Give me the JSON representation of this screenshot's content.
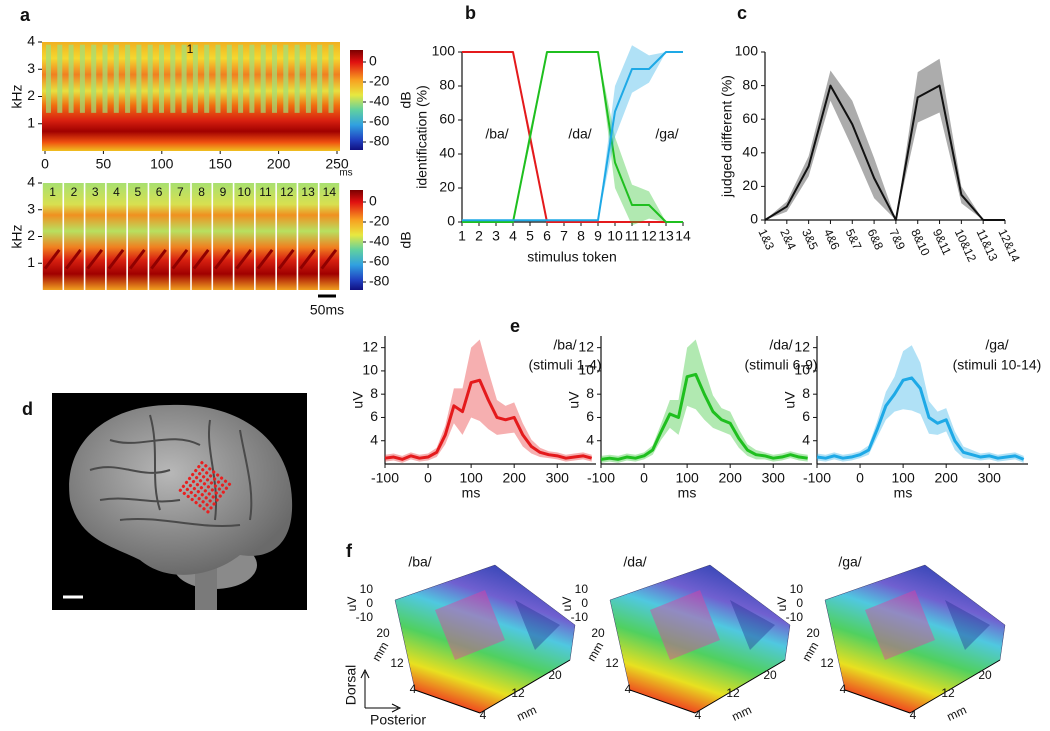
{
  "chart_data": [
    {
      "type": "spectrogram",
      "panel": "a",
      "ylabel": "kHz",
      "xlabel": "ms",
      "xlim": [
        0,
        250
      ],
      "xticks": [
        0,
        50,
        100,
        150,
        200,
        250
      ],
      "ylim": [
        0,
        4
      ],
      "yticks": [
        1,
        2,
        3,
        4
      ],
      "annotation": "1",
      "colorbar": {
        "label": "dB",
        "clim": [
          -88,
          12
        ],
        "ticks": [
          0,
          -20,
          -40,
          -60,
          -80
        ]
      }
    },
    {
      "type": "spectrogram",
      "ylabel": "kHz",
      "ylim": [
        0,
        4
      ],
      "yticks": [
        1,
        2,
        3,
        4
      ],
      "tokens": [
        1,
        2,
        3,
        4,
        5,
        6,
        7,
        8,
        9,
        10,
        11,
        12,
        13,
        14
      ],
      "scale_bar": "50ms",
      "colorbar": {
        "label": "dB",
        "clim": [
          -88,
          12
        ],
        "ticks": [
          0,
          -20,
          -40,
          -60,
          -80
        ]
      }
    },
    {
      "type": "line",
      "panel": "b",
      "ylabel": "identification (%)",
      "xlabel": "stimulus token",
      "x": [
        1,
        2,
        3,
        4,
        5,
        6,
        7,
        8,
        9,
        10,
        11,
        12,
        13,
        14
      ],
      "xlim": [
        1,
        14
      ],
      "xticks": [
        1,
        2,
        3,
        4,
        5,
        6,
        7,
        8,
        9,
        10,
        11,
        12,
        13,
        14
      ],
      "ylim": [
        0,
        100
      ],
      "yticks": [
        0,
        20,
        40,
        60,
        80,
        100
      ],
      "series": [
        {
          "name": "/ba/",
          "color": "#e41a1c",
          "values": [
            100,
            100,
            100,
            100,
            50,
            0,
            0,
            0,
            0,
            0,
            0,
            0,
            0,
            0
          ],
          "errors": [
            0,
            0,
            0,
            0,
            4,
            0,
            0,
            0,
            0,
            0,
            0,
            0,
            0,
            0
          ]
        },
        {
          "name": "/da/",
          "color": "#1fbf1f",
          "values": [
            0,
            0,
            0,
            0,
            50,
            100,
            100,
            100,
            100,
            35,
            10,
            10,
            0,
            0
          ],
          "errors": [
            0,
            0,
            0,
            0,
            4,
            0,
            0,
            0,
            0,
            15,
            12,
            8,
            0,
            0
          ]
        },
        {
          "name": "/ga/",
          "color": "#1ea9e6",
          "values": [
            1,
            1,
            1,
            1,
            1,
            1,
            1,
            1,
            1,
            65,
            90,
            90,
            100,
            100
          ],
          "errors": [
            0,
            0,
            0,
            0,
            0,
            0,
            0,
            0,
            0,
            15,
            14,
            8,
            0,
            0
          ]
        }
      ]
    },
    {
      "type": "line",
      "panel": "c",
      "ylabel": "judged different (%)",
      "categories": [
        "1&3",
        "2&4",
        "3&5",
        "4&6",
        "5&7",
        "6&8",
        "7&9",
        "8&10",
        "9&11",
        "10&12",
        "11&13",
        "12&14"
      ],
      "ylim": [
        0,
        100
      ],
      "yticks": [
        0,
        20,
        40,
        60,
        80,
        100
      ],
      "color": "#111111",
      "values": [
        0,
        8,
        32,
        80,
        57,
        25,
        0,
        73,
        80,
        15,
        0,
        0
      ],
      "errors": [
        0,
        3,
        6,
        9,
        14,
        12,
        0,
        15,
        16,
        5,
        0,
        0
      ]
    },
    {
      "type": "image",
      "panel": "d"
    },
    {
      "type": "line",
      "panel": "e",
      "title": "/ba/",
      "subtitle": "(stimuli 1-4)",
      "ylabel": "uV",
      "xlabel": "ms",
      "color": "#e41a1c",
      "xlim": [
        -100,
        390
      ],
      "xticks": [
        -100,
        0,
        100,
        200,
        300
      ],
      "ylim": [
        2,
        13
      ],
      "yticks": [
        4,
        6,
        8,
        10,
        12
      ],
      "x": [
        -100,
        -80,
        -60,
        -40,
        -20,
        0,
        20,
        40,
        60,
        80,
        100,
        120,
        140,
        160,
        180,
        200,
        220,
        240,
        260,
        280,
        300,
        320,
        340,
        360,
        380
      ],
      "values": [
        2.5,
        2.6,
        2.4,
        2.7,
        2.5,
        2.6,
        3.0,
        4.5,
        7.0,
        6.5,
        9.0,
        9.2,
        7.5,
        6.0,
        5.8,
        6.0,
        4.5,
        3.5,
        3.0,
        2.8,
        2.7,
        2.5,
        2.6,
        2.7,
        2.5
      ],
      "errors": [
        0.3,
        0.3,
        0.3,
        0.3,
        0.3,
        0.3,
        0.4,
        0.8,
        1.5,
        2.0,
        3.0,
        3.5,
        2.5,
        1.5,
        1.2,
        1.3,
        1.0,
        0.6,
        0.4,
        0.3,
        0.3,
        0.3,
        0.3,
        0.3,
        0.3
      ]
    },
    {
      "type": "line",
      "title": "/da/",
      "subtitle": "(stimuli 6-9)",
      "ylabel": "uV",
      "xlabel": "ms",
      "color": "#1fbf1f",
      "xlim": [
        -100,
        390
      ],
      "xticks": [
        -100,
        0,
        100,
        200,
        300
      ],
      "ylim": [
        2,
        13
      ],
      "yticks": [
        4,
        6,
        8,
        10,
        12
      ],
      "x": [
        -100,
        -80,
        -60,
        -40,
        -20,
        0,
        20,
        40,
        60,
        80,
        100,
        120,
        140,
        160,
        180,
        200,
        220,
        240,
        260,
        280,
        300,
        320,
        340,
        360,
        380
      ],
      "values": [
        2.4,
        2.5,
        2.4,
        2.6,
        2.5,
        2.7,
        3.2,
        4.8,
        6.3,
        6.0,
        9.5,
        9.7,
        8.0,
        6.5,
        5.8,
        5.5,
        4.2,
        3.2,
        2.8,
        2.7,
        2.5,
        2.6,
        2.8,
        2.6,
        2.5
      ],
      "errors": [
        0.3,
        0.3,
        0.3,
        0.3,
        0.3,
        0.3,
        0.4,
        0.7,
        1.2,
        1.5,
        2.5,
        3.0,
        2.2,
        1.4,
        1.0,
        1.0,
        0.8,
        0.5,
        0.4,
        0.3,
        0.3,
        0.3,
        0.3,
        0.3,
        0.3
      ]
    },
    {
      "type": "line",
      "title": "/ga/",
      "subtitle": "(stimuli 10-14)",
      "ylabel": "uV",
      "xlabel": "ms",
      "color": "#1ea9e6",
      "xlim": [
        -100,
        390
      ],
      "xticks": [
        -100,
        0,
        100,
        200,
        300
      ],
      "ylim": [
        2,
        13
      ],
      "yticks": [
        4,
        6,
        8,
        10,
        12
      ],
      "x": [
        -100,
        -80,
        -60,
        -40,
        -20,
        0,
        20,
        40,
        60,
        80,
        100,
        120,
        140,
        160,
        180,
        200,
        220,
        240,
        260,
        280,
        300,
        320,
        340,
        360,
        380
      ],
      "values": [
        2.6,
        2.5,
        2.7,
        2.5,
        2.6,
        2.8,
        3.2,
        5.0,
        7.0,
        8.0,
        9.2,
        9.4,
        8.5,
        6.0,
        5.5,
        5.8,
        4.0,
        3.0,
        2.8,
        2.6,
        2.7,
        2.5,
        2.6,
        2.7,
        2.4
      ],
      "errors": [
        0.3,
        0.3,
        0.3,
        0.3,
        0.3,
        0.3,
        0.4,
        0.7,
        1.2,
        1.5,
        2.5,
        2.8,
        2.2,
        1.4,
        1.0,
        1.0,
        0.8,
        0.5,
        0.4,
        0.3,
        0.3,
        0.3,
        0.3,
        0.3,
        0.3
      ]
    },
    {
      "type": "surface",
      "panel": "f",
      "titles": [
        "/ba/",
        "/da/",
        "/ga/"
      ],
      "zlabel": "uV",
      "zticks": [
        10,
        0,
        -10
      ],
      "depth_label": "mm",
      "depth_ticks": [
        20,
        12,
        4
      ],
      "width_label": "mm",
      "width_ticks": [
        4,
        12,
        20
      ],
      "arrow_labels": [
        "Dorsal",
        "Posterior"
      ]
    }
  ]
}
